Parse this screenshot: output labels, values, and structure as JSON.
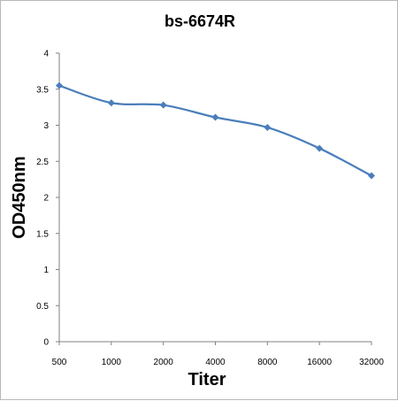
{
  "chart_data": {
    "type": "line",
    "title": "bs-6674R",
    "xlabel": "Titer",
    "ylabel": "OD450nm",
    "categories": [
      "500",
      "1000",
      "2000",
      "4000",
      "8000",
      "16000",
      "32000"
    ],
    "series": [
      {
        "values": [
          3.55,
          3.31,
          3.28,
          3.11,
          2.97,
          2.68,
          2.3
        ]
      }
    ],
    "ylim": [
      0,
      4
    ],
    "yticks": [
      "0",
      "0.5",
      "1",
      "1.5",
      "2",
      "2.5",
      "3",
      "3.5",
      "4"
    ],
    "grid": false,
    "legend": "none",
    "colors": {
      "line": "#4a7ebb",
      "marker": "#4a7ebb",
      "axis": "#808080"
    }
  }
}
